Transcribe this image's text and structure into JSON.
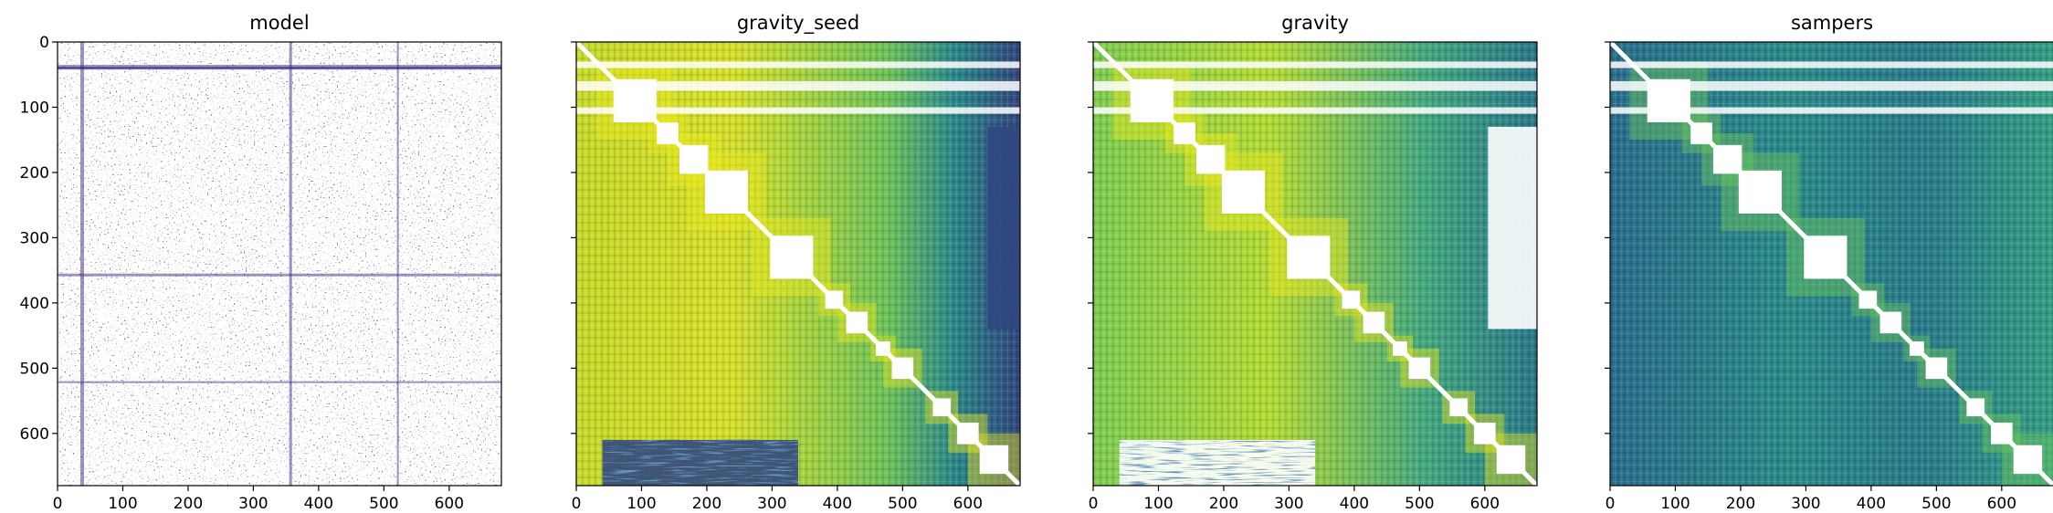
{
  "chart_data": [
    {
      "type": "heatmap",
      "title": "model",
      "colormap": "sparse-purple",
      "xlim": [
        0,
        680
      ],
      "ylim": [
        680,
        0
      ],
      "xticks": [
        0,
        100,
        200,
        300,
        400,
        500,
        600
      ],
      "yticks": [
        0,
        100,
        200,
        300,
        400,
        500,
        600
      ],
      "show_yticklabels": true,
      "grid": false
    },
    {
      "type": "heatmap",
      "title": "gravity_seed",
      "colormap": "viridis",
      "xlim": [
        0,
        680
      ],
      "ylim": [
        680,
        0
      ],
      "xticks": [
        0,
        100,
        200,
        300,
        400,
        500,
        600
      ],
      "yticks": [
        0,
        100,
        200,
        300,
        400,
        500,
        600
      ],
      "show_yticklabels": false,
      "grid": false
    },
    {
      "type": "heatmap",
      "title": "gravity",
      "colormap": "viridis",
      "xlim": [
        0,
        680
      ],
      "ylim": [
        680,
        0
      ],
      "xticks": [
        0,
        100,
        200,
        300,
        400,
        500,
        600
      ],
      "yticks": [
        0,
        100,
        200,
        300,
        400,
        500,
        600
      ],
      "show_yticklabels": false,
      "grid": false
    },
    {
      "type": "heatmap",
      "title": "sampers",
      "colormap": "viridis",
      "xlim": [
        0,
        680
      ],
      "ylim": [
        680,
        0
      ],
      "xticks": [
        0,
        100,
        200,
        300,
        400,
        500,
        600
      ],
      "yticks": [
        0,
        100,
        200,
        300,
        400,
        500,
        600
      ],
      "show_yticklabels": false,
      "grid": false
    }
  ],
  "colors": {
    "purple": "#3b2a7f",
    "viridis_dark": "#31477f",
    "viridis_mid": "#21908c",
    "viridis_light": "#a0da39",
    "viridis_yellow": "#e8e61e"
  }
}
